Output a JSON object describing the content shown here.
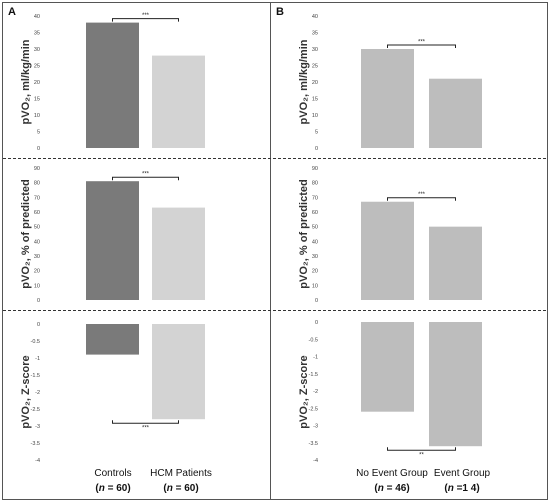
{
  "panels": [
    {
      "letter": "A",
      "groups": [
        {
          "name": "Controls",
          "n_prefix": "(",
          "n_var": "n",
          "n_suffix": " = 60)"
        },
        {
          "name": "HCM Patients",
          "n_prefix": "(",
          "n_var": "n",
          "n_suffix": " = 60)"
        }
      ]
    },
    {
      "letter": "B",
      "groups": [
        {
          "name": "No Event Group",
          "n_prefix": "(",
          "n_var": "n",
          "n_suffix": " = 46)"
        },
        {
          "name": "Event Group",
          "n_prefix": "(",
          "n_var": "n",
          "n_suffix": " =1 4)"
        }
      ]
    }
  ],
  "colors": {
    "controls": "#7a7a7a",
    "hcm": "#d3d3d3",
    "event_groups": "#bdbdbd",
    "border": "#555555",
    "dashed_divider": "#333333"
  },
  "chart_data": [
    {
      "type": "bar",
      "panel": "A",
      "row": 1,
      "categories": [
        "Controls",
        "HCM Patients"
      ],
      "values": [
        38,
        28
      ],
      "ylabel": "pVO₂, ml/kg/min",
      "ylim": [
        0,
        40
      ],
      "yticks": [
        "0",
        "5",
        "10",
        "15",
        "20",
        "25",
        "30",
        "35",
        "40"
      ],
      "significance": "***",
      "grid": false
    },
    {
      "type": "bar",
      "panel": "B",
      "row": 1,
      "categories": [
        "No Event Group",
        "Event Group"
      ],
      "values": [
        30,
        21
      ],
      "ylabel": "pVO₂, ml/kg/min",
      "ylim": [
        0,
        40
      ],
      "yticks": [
        "0",
        "5",
        "10",
        "15",
        "20",
        "25",
        "30",
        "35",
        "40"
      ],
      "significance": "***",
      "grid": false
    },
    {
      "type": "bar",
      "panel": "A",
      "row": 2,
      "categories": [
        "Controls",
        "HCM Patients"
      ],
      "values": [
        81,
        63
      ],
      "ylabel": "pVO₂, % of predicted",
      "ylim": [
        0,
        90
      ],
      "yticks": [
        "0",
        "10",
        "20",
        "30",
        "40",
        "50",
        "60",
        "70",
        "80",
        "90"
      ],
      "significance": "***",
      "grid": false
    },
    {
      "type": "bar",
      "panel": "B",
      "row": 2,
      "categories": [
        "No Event Group",
        "Event Group"
      ],
      "values": [
        67,
        50
      ],
      "ylabel": "pVO₂, % of predicted",
      "ylim": [
        0,
        90
      ],
      "yticks": [
        "0",
        "10",
        "20",
        "30",
        "40",
        "50",
        "60",
        "70",
        "80",
        "90"
      ],
      "significance": "***",
      "grid": false
    },
    {
      "type": "bar",
      "panel": "A",
      "row": 3,
      "categories": [
        "Controls",
        "HCM Patients"
      ],
      "values": [
        -0.9,
        -2.8
      ],
      "ylabel": "pVO₂, Z-score",
      "ylim": [
        -4,
        0
      ],
      "yticks": [
        "0",
        "-0.5",
        "-1",
        "-1.5",
        "-2",
        "-2.5",
        "-3",
        "-3.5",
        "-4"
      ],
      "significance": "***",
      "grid": false
    },
    {
      "type": "bar",
      "panel": "B",
      "row": 3,
      "categories": [
        "No Event Group",
        "Event Group"
      ],
      "values": [
        -2.6,
        -3.6
      ],
      "ylabel": "pVO₂, Z-score",
      "ylim": [
        -4,
        0
      ],
      "yticks": [
        "0",
        "-0.5",
        "-1",
        "-1.5",
        "-2",
        "-2.5",
        "-3",
        "-3.5",
        "-4"
      ],
      "significance": "**",
      "grid": false
    }
  ]
}
